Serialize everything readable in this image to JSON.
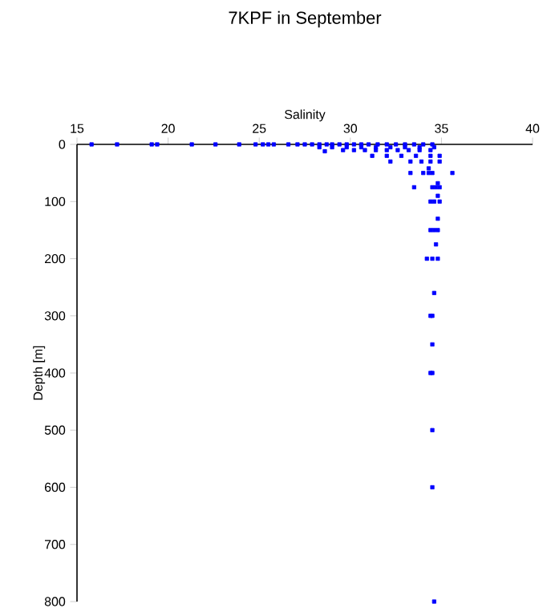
{
  "chart_data": {
    "type": "scatter",
    "title": "7KPF in September",
    "xlabel": "Salinity",
    "ylabel": "Depth [m]",
    "xlim": [
      15,
      40
    ],
    "xticks": [
      15,
      20,
      25,
      30,
      35,
      40
    ],
    "ylim": [
      800,
      0
    ],
    "yticks": [
      0,
      100,
      200,
      300,
      400,
      500,
      600,
      700,
      800
    ],
    "marker": "square",
    "grid": false,
    "series": [
      {
        "color": "#0000ff",
        "x": [
          15.8,
          17.2,
          19.1,
          19.4,
          21.3,
          22.6,
          23.9,
          24.8,
          25.2,
          25.5,
          25.8,
          26.6,
          27.1,
          27.5,
          27.9,
          28.3,
          28.7,
          29.0,
          29.4,
          29.8,
          30.2,
          30.6,
          31.0,
          31.5,
          32.0,
          32.5,
          33.0,
          33.5,
          34.0,
          34.5,
          28.3,
          29.0,
          29.8,
          30.6,
          31.4,
          32.2,
          33.0,
          33.8,
          34.6,
          28.6,
          29.6,
          30.2,
          30.8,
          31.4,
          32.0,
          32.6,
          33.2,
          33.8,
          34.4,
          31.2,
          32.0,
          32.8,
          33.6,
          34.4,
          34.9,
          32.2,
          33.3,
          33.9,
          34.4,
          34.9,
          34.3,
          33.3,
          34.0,
          34.3,
          34.5,
          35.6,
          34.8,
          33.5,
          34.5,
          34.7,
          34.9,
          34.8,
          34.4,
          34.6,
          34.9,
          34.8,
          34.4,
          34.6,
          34.8,
          34.7,
          34.2,
          34.5,
          34.8,
          34.6,
          34.4,
          34.5,
          34.5,
          34.4,
          34.5,
          34.5,
          34.5,
          34.6
        ],
        "values": [
          0,
          0,
          0,
          0,
          0,
          0,
          0,
          0,
          0,
          0,
          0,
          0,
          0,
          0,
          0,
          0,
          0,
          0,
          0,
          0,
          0,
          0,
          0,
          0,
          0,
          0,
          0,
          0,
          0,
          0,
          5,
          5,
          5,
          5,
          5,
          5,
          5,
          5,
          5,
          12,
          10,
          10,
          10,
          10,
          10,
          10,
          10,
          10,
          10,
          20,
          20,
          20,
          20,
          20,
          20,
          30,
          30,
          30,
          30,
          30,
          42,
          50,
          50,
          50,
          50,
          50,
          68,
          75,
          75,
          75,
          75,
          90,
          100,
          100,
          100,
          130,
          150,
          150,
          150,
          175,
          200,
          200,
          200,
          260,
          300,
          300,
          350,
          400,
          400,
          500,
          600,
          800
        ]
      }
    ]
  }
}
